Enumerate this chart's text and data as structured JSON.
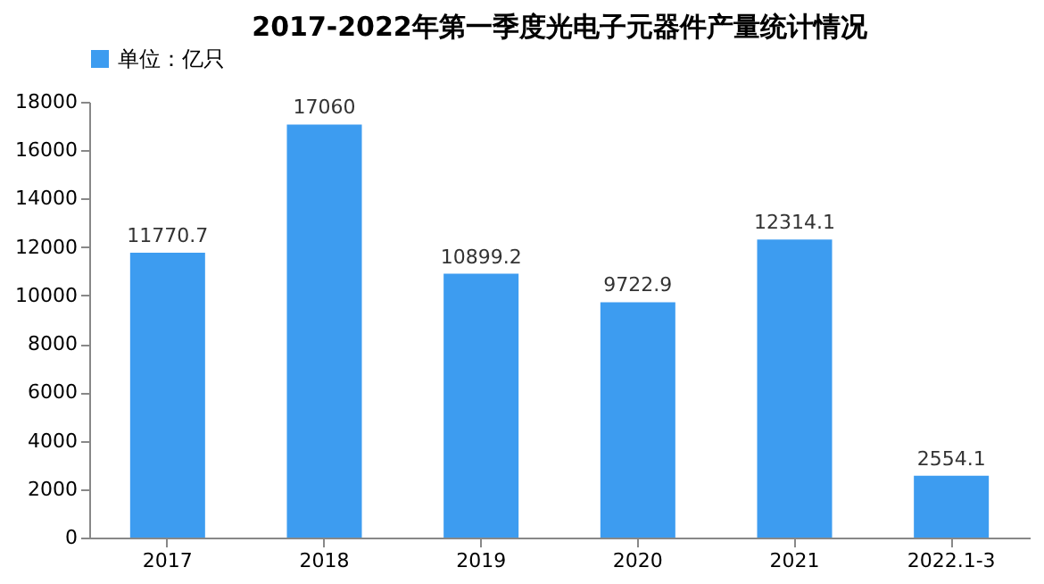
{
  "chart_data": {
    "type": "bar",
    "title": "2017-2022年第一季度光电子元器件产量统计情况",
    "categories": [
      "2017",
      "2018",
      "2019",
      "2020",
      "2021",
      "2022.1-3"
    ],
    "series": [
      {
        "name": "单位：亿只",
        "color": "#3d9cf0",
        "values": [
          11770.7,
          17060,
          10899.2,
          9722.9,
          12314.1,
          2554.1
        ]
      }
    ],
    "ylim": [
      0,
      18000
    ],
    "yticks": [
      0,
      2000,
      4000,
      6000,
      8000,
      10000,
      12000,
      14000,
      16000,
      18000
    ],
    "data_labels": true,
    "grid": false,
    "legend": "top"
  }
}
